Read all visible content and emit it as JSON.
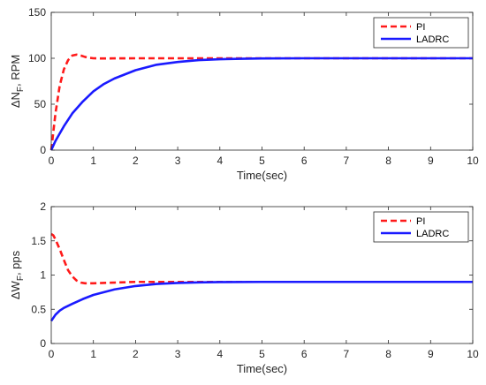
{
  "colors": {
    "pi": "#ff1a1a",
    "ladrc": "#1a1aff",
    "axis": "#262626",
    "background": "#ffffff"
  },
  "chart_data": [
    {
      "type": "line",
      "xlabel": "Time(sec)",
      "ylabel_prefix": "ΔN",
      "ylabel_sub": "F",
      "ylabel_suffix": ", RPM",
      "xlim": [
        0,
        10
      ],
      "ylim": [
        0,
        150
      ],
      "xticks": [
        0,
        1,
        2,
        3,
        4,
        5,
        6,
        7,
        8,
        9,
        10
      ],
      "yticks": [
        0,
        50,
        100,
        150
      ],
      "grid": false,
      "legend_position": "top-right",
      "series": [
        {
          "name": "PI",
          "style": "dashed",
          "color": "#ff1a1a",
          "x": [
            0,
            0.1,
            0.2,
            0.3,
            0.4,
            0.5,
            0.6,
            0.7,
            0.8,
            0.9,
            1.0,
            1.2,
            1.5,
            2,
            3,
            4,
            5,
            6,
            7,
            8,
            9,
            10
          ],
          "y": [
            0,
            40,
            70,
            88,
            98,
            103,
            104,
            103,
            101.5,
            100.5,
            100,
            99.8,
            99.9,
            100,
            100,
            100,
            100,
            100,
            100,
            100,
            100,
            100
          ]
        },
        {
          "name": "LADRC",
          "style": "solid",
          "color": "#1a1aff",
          "x": [
            0,
            0.1,
            0.2,
            0.3,
            0.5,
            0.75,
            1.0,
            1.25,
            1.5,
            2,
            2.5,
            3,
            3.5,
            4,
            4.5,
            5,
            6,
            7,
            8,
            9,
            10
          ],
          "y": [
            0,
            10,
            18,
            26,
            40,
            53,
            64,
            72,
            78,
            87,
            93,
            96,
            98,
            99,
            99.5,
            99.8,
            100,
            100,
            100,
            100,
            100
          ]
        }
      ]
    },
    {
      "type": "line",
      "xlabel": "Time(sec)",
      "ylabel_prefix": "ΔW",
      "ylabel_sub": "F",
      "ylabel_suffix": ", pps",
      "xlim": [
        0,
        10
      ],
      "ylim": [
        0,
        2
      ],
      "xticks": [
        0,
        1,
        2,
        3,
        4,
        5,
        6,
        7,
        8,
        9,
        10
      ],
      "yticks": [
        0,
        0.5,
        1,
        1.5,
        2
      ],
      "grid": false,
      "legend_position": "top-right",
      "series": [
        {
          "name": "PI",
          "style": "dashed",
          "color": "#ff1a1a",
          "x": [
            0,
            0.05,
            0.1,
            0.2,
            0.3,
            0.4,
            0.5,
            0.6,
            0.7,
            0.8,
            1.0,
            1.5,
            2,
            3,
            4,
            5,
            6,
            7,
            8,
            9,
            10
          ],
          "y": [
            1.6,
            1.58,
            1.52,
            1.38,
            1.22,
            1.07,
            0.98,
            0.92,
            0.89,
            0.88,
            0.88,
            0.89,
            0.9,
            0.9,
            0.9,
            0.9,
            0.9,
            0.9,
            0.9,
            0.9,
            0.9
          ]
        },
        {
          "name": "LADRC",
          "style": "solid",
          "color": "#1a1aff",
          "x": [
            0,
            0.1,
            0.2,
            0.3,
            0.5,
            0.75,
            1.0,
            1.25,
            1.5,
            2,
            2.5,
            3,
            3.5,
            4,
            5,
            6,
            7,
            8,
            9,
            10
          ],
          "y": [
            0.33,
            0.42,
            0.48,
            0.52,
            0.58,
            0.65,
            0.71,
            0.75,
            0.79,
            0.84,
            0.87,
            0.885,
            0.893,
            0.897,
            0.9,
            0.9,
            0.9,
            0.9,
            0.9,
            0.9
          ]
        }
      ]
    }
  ]
}
